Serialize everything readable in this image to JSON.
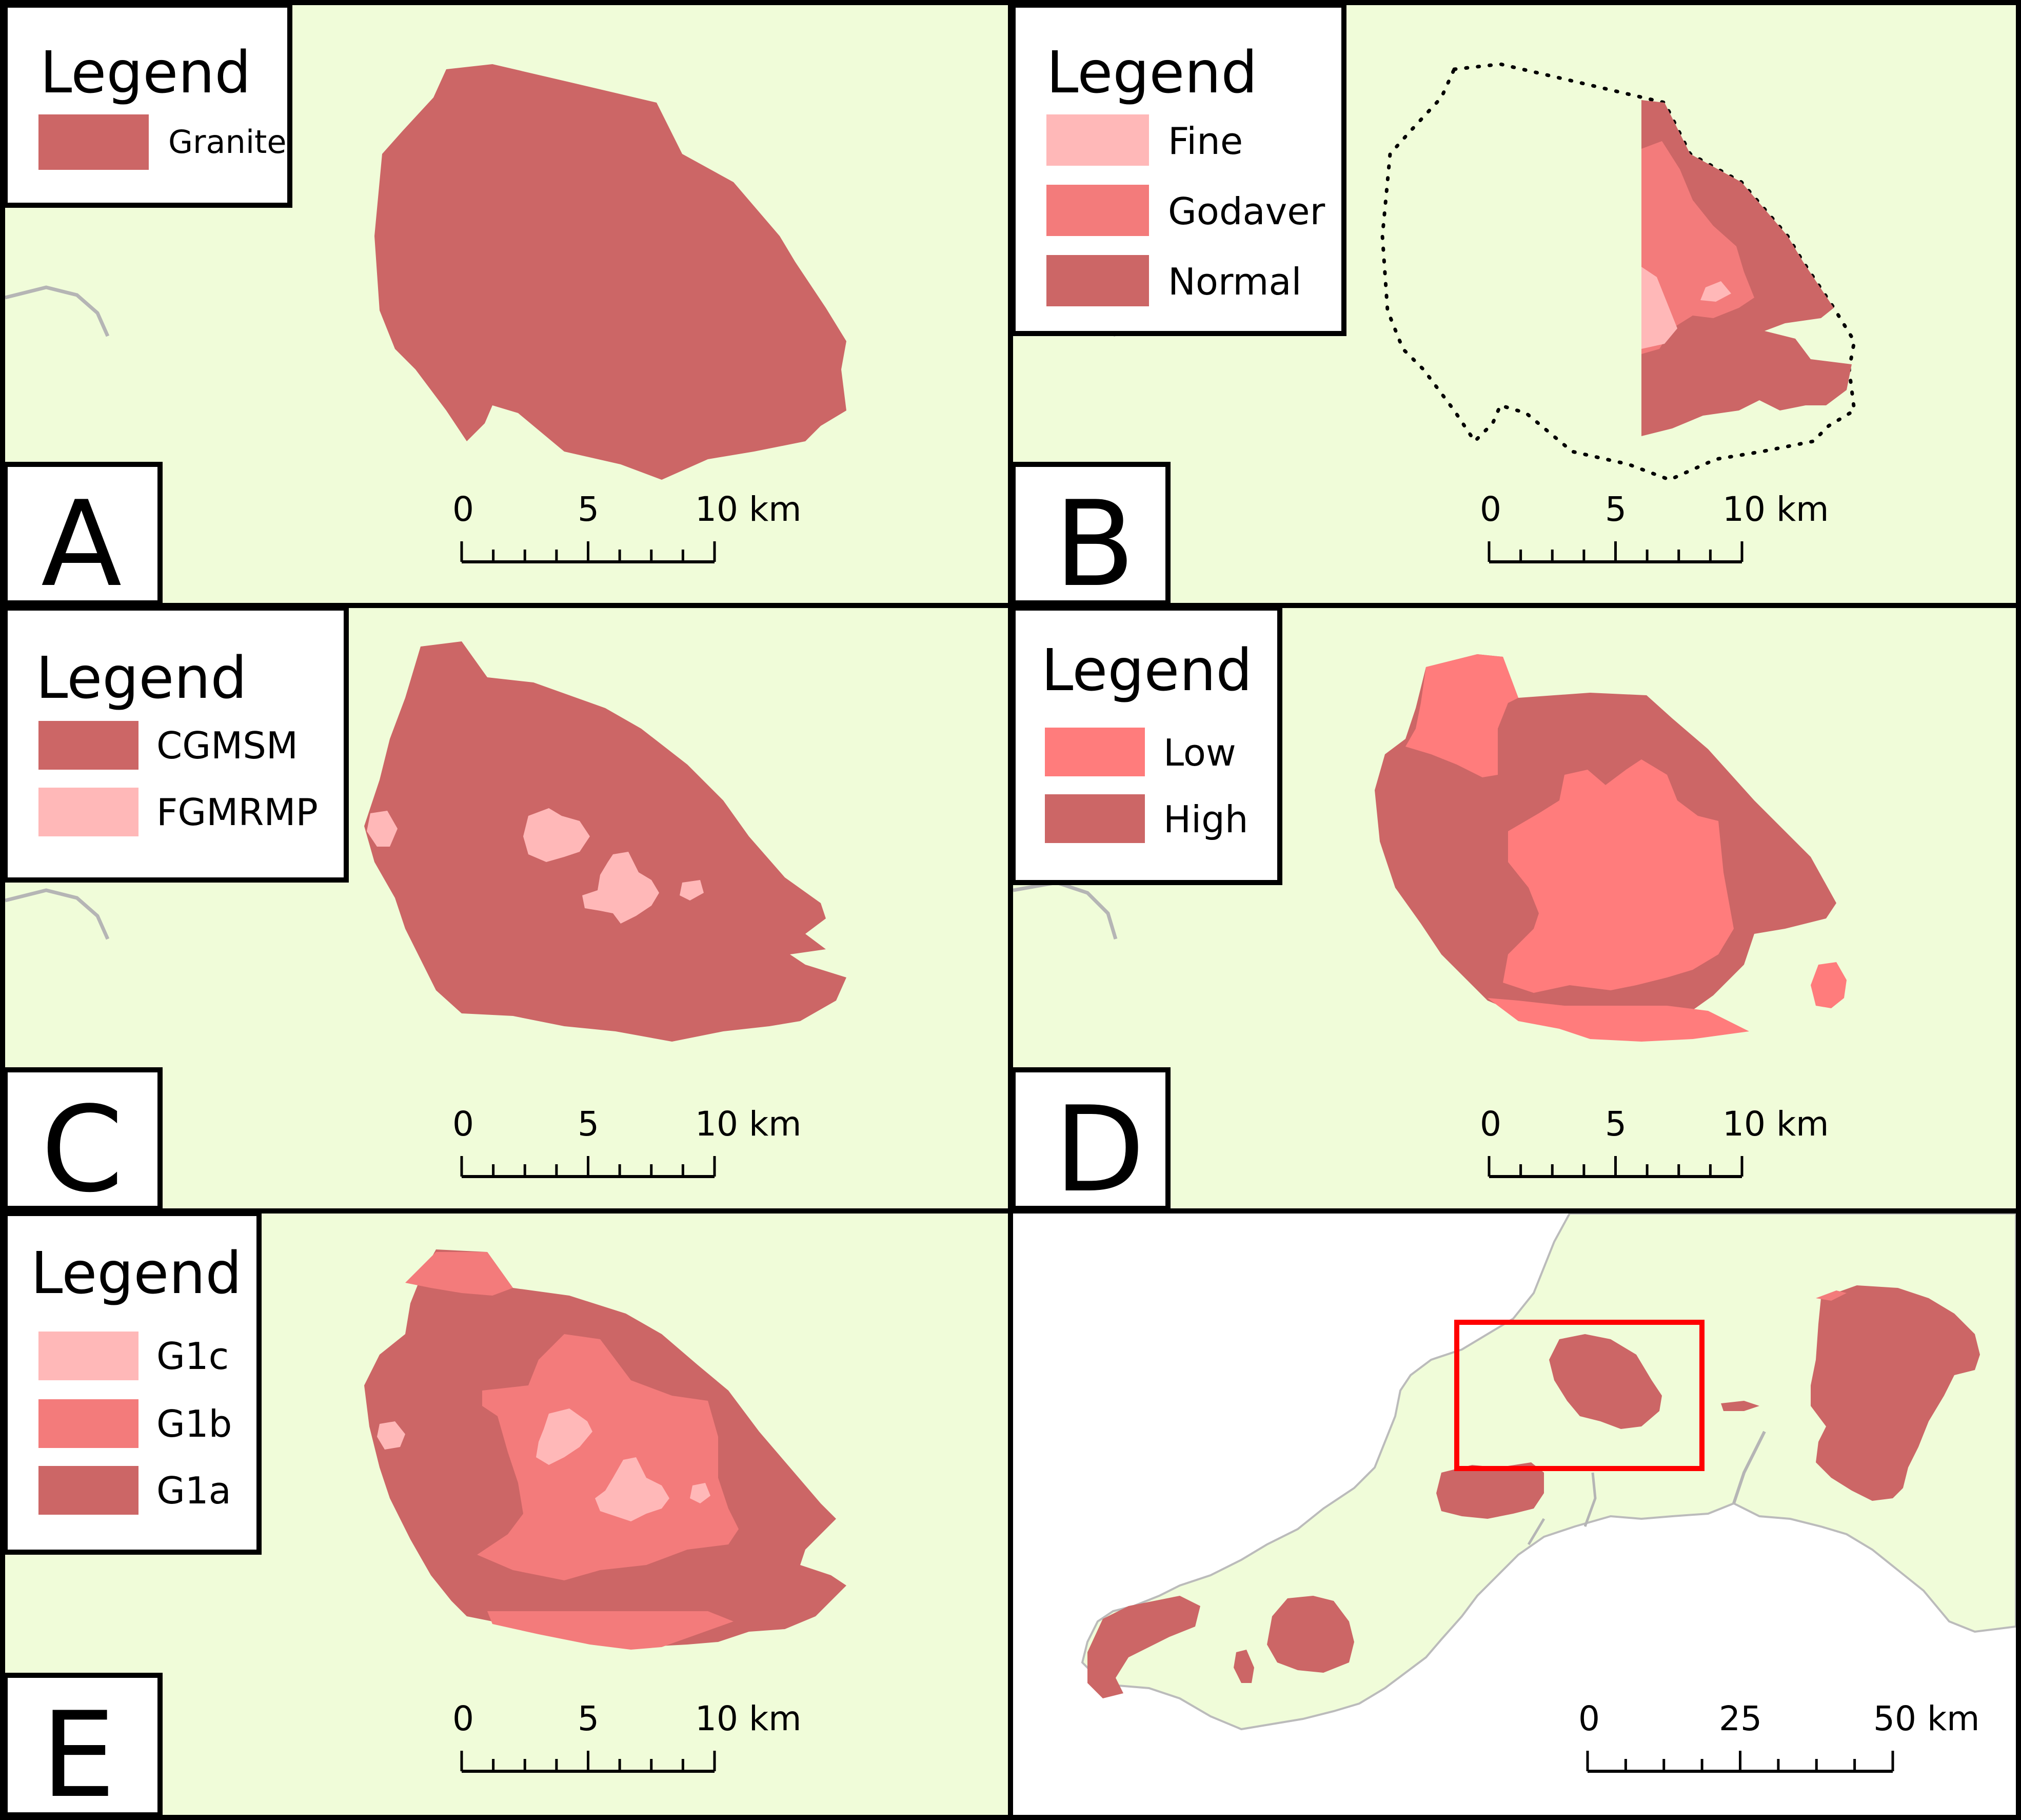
{
  "colors": {
    "land": "#f0fcd9",
    "sea": "#ffffff",
    "border": "#000000",
    "granite": "#cc6666",
    "fine": "#ffb8b8",
    "godaver": "#f37b7b",
    "normal": "#cc6666",
    "cgmsm": "#cc6666",
    "fgmrmp": "#ffb8b8",
    "low": "#ff7c7c",
    "high": "#cc6666",
    "g1c": "#ffb8b8",
    "g1b": "#f37b7b",
    "g1a": "#cc6666",
    "locator_box": "#ff0000",
    "river": "#b5b5b5"
  },
  "panels": {
    "A": {
      "letter": "A",
      "legend_title": "Legend",
      "legend": [
        "Granite"
      ]
    },
    "B": {
      "letter": "B",
      "legend_title": "Legend",
      "legend": [
        "Fine",
        "Godaver",
        "Normal"
      ]
    },
    "C": {
      "letter": "C",
      "legend_title": "Legend",
      "legend": [
        "CGMSM",
        "FGMRMP"
      ]
    },
    "D": {
      "letter": "D",
      "legend_title": "Legend",
      "legend": [
        "Low",
        "High"
      ]
    },
    "E": {
      "letter": "E",
      "legend_title": "Legend",
      "legend": [
        "G1c",
        "G1b",
        "G1a"
      ]
    },
    "F": {
      "letter": "",
      "legend_title": "",
      "legend": []
    }
  },
  "scalebar_detail": {
    "labels": [
      "0",
      "5",
      "10 km"
    ]
  },
  "scalebar_overview": {
    "labels": [
      "0",
      "25",
      "50 km"
    ]
  }
}
